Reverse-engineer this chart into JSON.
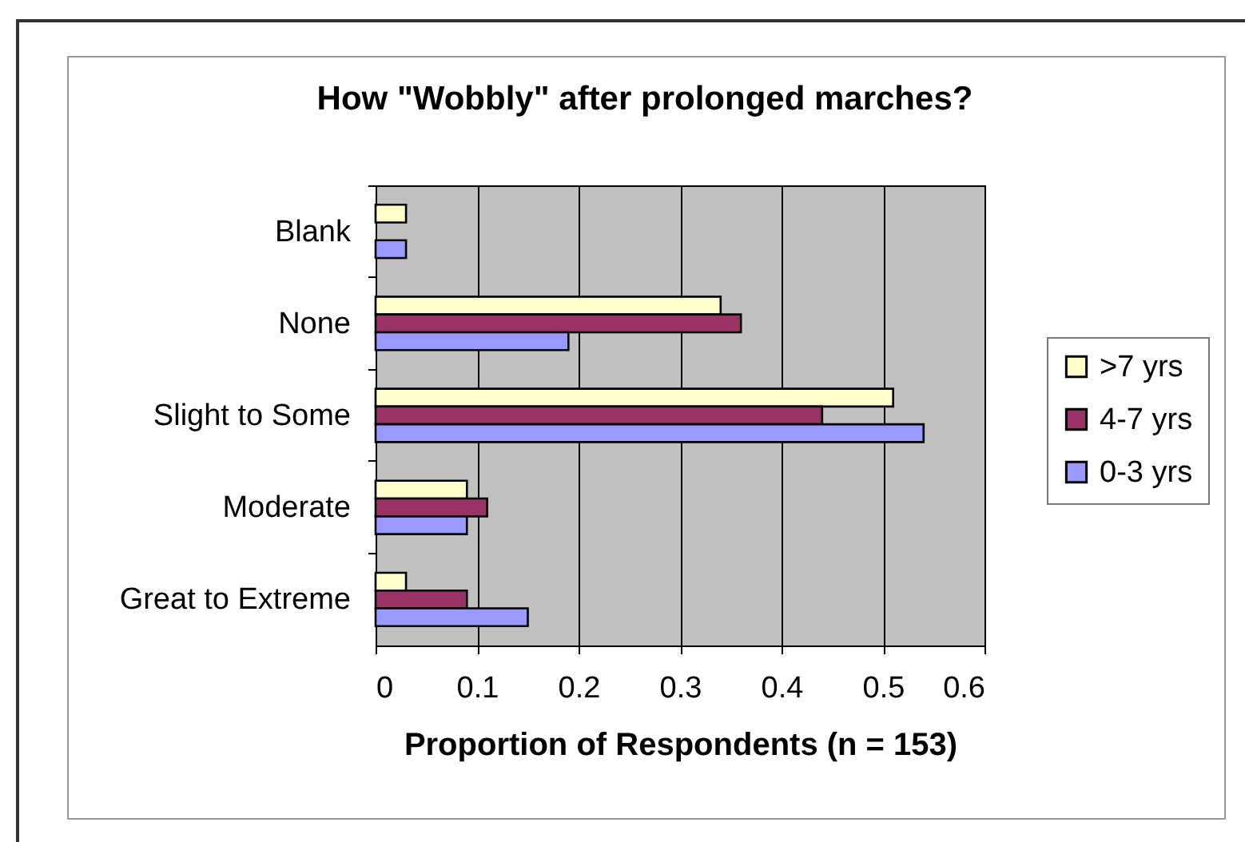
{
  "chart_data": {
    "type": "bar",
    "orientation": "horizontal",
    "title": "How \"Wobbly\" after prolonged marches?",
    "xlabel": "Proportion of Respondents (n = 153)",
    "categories": [
      "Blank",
      "None",
      "Slight to Some",
      "Moderate",
      "Great to Extreme"
    ],
    "series": [
      {
        "name": ">7 yrs",
        "color": "#ffffcc",
        "values": [
          0.03,
          0.34,
          0.51,
          0.09,
          0.03
        ]
      },
      {
        "name": "4-7 yrs",
        "color": "#993366",
        "values": [
          null,
          0.36,
          0.44,
          0.11,
          0.09
        ]
      },
      {
        "name": "0-3 yrs",
        "color": "#9999ff",
        "values": [
          0.03,
          0.19,
          0.54,
          0.09,
          0.15
        ]
      }
    ],
    "xlim": [
      0,
      0.6
    ],
    "xticks": [
      0,
      0.1,
      0.2,
      0.3,
      0.4,
      0.5,
      0.6
    ],
    "grid": "x",
    "legend": "right"
  }
}
